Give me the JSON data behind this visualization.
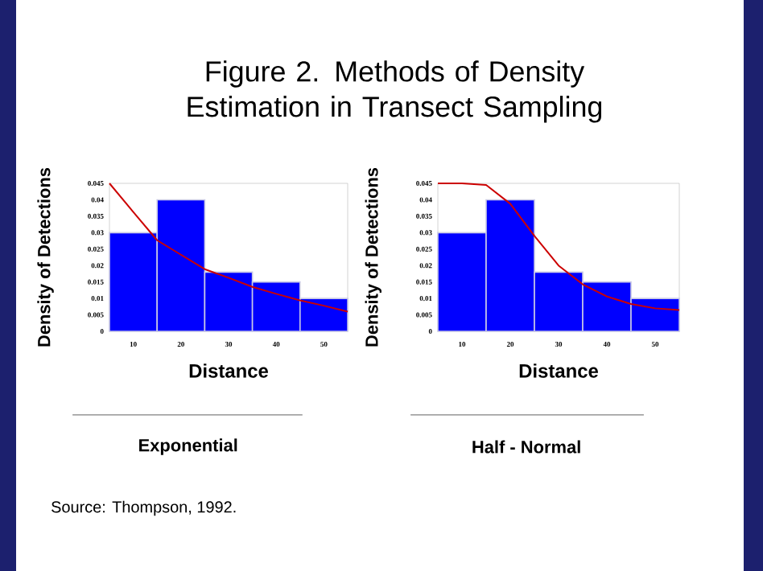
{
  "chart_data": [
    {
      "type": "histogram",
      "title": "Figure 2. Methods of Density Estimation in Transect Sampling",
      "subtitle": "Exponential",
      "xlabel": "Distance",
      "ylabel": "Density of Detections",
      "annotations": [
        "Source: Thompson, 1992."
      ],
      "xlim": [
        5,
        55
      ],
      "ylim": [
        0,
        0.045
      ],
      "xticks": [
        10,
        20,
        30,
        40,
        50
      ],
      "yticks": [
        0,
        0.005,
        0.01,
        0.015,
        0.02,
        0.025,
        0.03,
        0.035,
        0.04,
        0.045
      ],
      "grid": false,
      "series": [
        {
          "color": "#0000ff",
          "bins": [
            5,
            15,
            25,
            35,
            45,
            55
          ],
          "values": [
            0.03,
            0.04,
            0.018,
            0.015,
            0.01
          ]
        },
        {
          "type": "line",
          "color": "#cc0000",
          "x": [
            5,
            10,
            15,
            20,
            25,
            30,
            35,
            40,
            45,
            50,
            55
          ],
          "values": [
            0.045,
            0.0363,
            0.0277,
            0.0233,
            0.0189,
            0.0163,
            0.0135,
            0.0114,
            0.0094,
            0.0078,
            0.006
          ]
        }
      ]
    },
    {
      "type": "histogram",
      "subtitle": "Half - Normal",
      "xlabel": "Distance",
      "ylabel": "Density of Detections",
      "xlim": [
        5,
        55
      ],
      "ylim": [
        0,
        0.045
      ],
      "xticks": [
        10,
        20,
        30,
        40,
        50
      ],
      "yticks": [
        0,
        0.005,
        0.01,
        0.015,
        0.02,
        0.025,
        0.03,
        0.035,
        0.04,
        0.045
      ],
      "grid": false,
      "series": [
        {
          "color": "#0000ff",
          "bins": [
            5,
            15,
            25,
            35,
            45,
            55
          ],
          "values": [
            0.03,
            0.04,
            0.018,
            0.015,
            0.01
          ]
        },
        {
          "type": "line",
          "color": "#cc0000",
          "x": [
            5,
            10,
            15,
            20,
            25,
            30,
            35,
            40,
            45,
            50,
            55
          ],
          "values": [
            0.045,
            0.045,
            0.0445,
            0.0388,
            0.029,
            0.02,
            0.0143,
            0.0106,
            0.0083,
            0.007,
            0.0065
          ]
        }
      ]
    }
  ]
}
